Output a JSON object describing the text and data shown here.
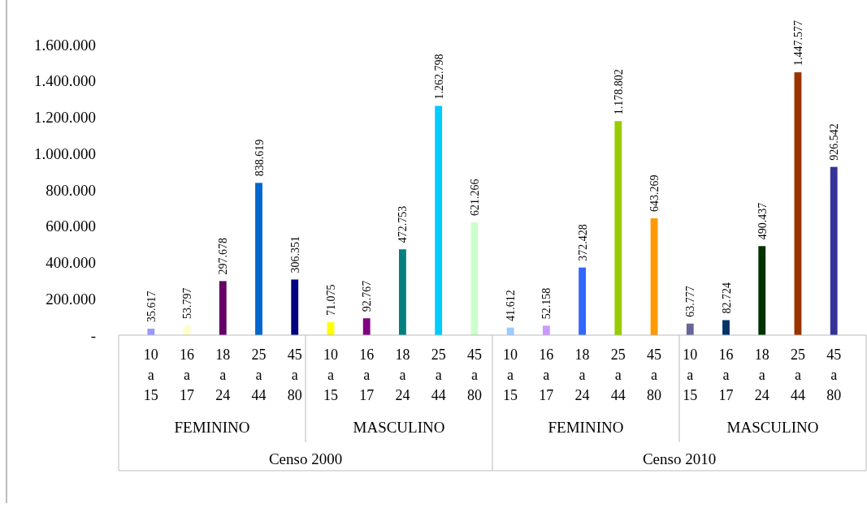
{
  "chart_data": {
    "type": "bar",
    "categories": [
      "10 a 15",
      "16 a 17",
      "18 a 24",
      "25 a 44",
      "45 a 80",
      "10 a 15",
      "16 a 17",
      "18 a 24",
      "25 a 44",
      "45 a 80",
      "10 a 15",
      "16 a 17",
      "18 a 24",
      "25 a 44",
      "45 a 80",
      "10 a 15",
      "16 a 17",
      "18 a 24",
      "25 a 44",
      "45 a 80"
    ],
    "values": [
      35617,
      53797,
      297678,
      838619,
      306351,
      71075,
      92767,
      472753,
      1262798,
      621266,
      41612,
      52158,
      372428,
      1178802,
      643269,
      63777,
      82724,
      490437,
      1447577,
      926542
    ],
    "value_labels": [
      "35.617",
      "53.797",
      "297.678",
      "838.619",
      "306.351",
      "71.075",
      "92.767",
      "472.753",
      "1.262.798",
      "621.266",
      "41.612",
      "52.158",
      "372.428",
      "1.178.802",
      "643.269",
      "63.777",
      "82.724",
      "490.437",
      "1.447.577",
      "926.542"
    ],
    "colors": [
      "#9999ff",
      "#ffffcc",
      "#660066",
      "#0066cc",
      "#000080",
      "#ffff00",
      "#800080",
      "#008080",
      "#00ccff",
      "#ccffcc",
      "#99ccff",
      "#cc99ff",
      "#3366ff",
      "#99cc00",
      "#ff9900",
      "#666699",
      "#003366",
      "#003300",
      "#993300",
      "#333399"
    ],
    "annotations": [
      "FEMININO",
      "MASCULINO",
      "FEMININO",
      "MASCULINO",
      "Censo 2000",
      "Censo 2010"
    ],
    "ylim": [
      0,
      1600000
    ],
    "yticks": [
      {
        "value": 0,
        "label": "-"
      },
      {
        "value": 200000,
        "label": "200.000"
      },
      {
        "value": 400000,
        "label": "400.000"
      },
      {
        "value": 600000,
        "label": "600.000"
      },
      {
        "value": 800000,
        "label": "800.000"
      },
      {
        "value": 1000000,
        "label": "1.000.000"
      },
      {
        "value": 1200000,
        "label": "1.200.000"
      },
      {
        "value": 1400000,
        "label": "1.400.000"
      },
      {
        "value": 1600000,
        "label": "1.600.000"
      }
    ],
    "grid": false
  }
}
